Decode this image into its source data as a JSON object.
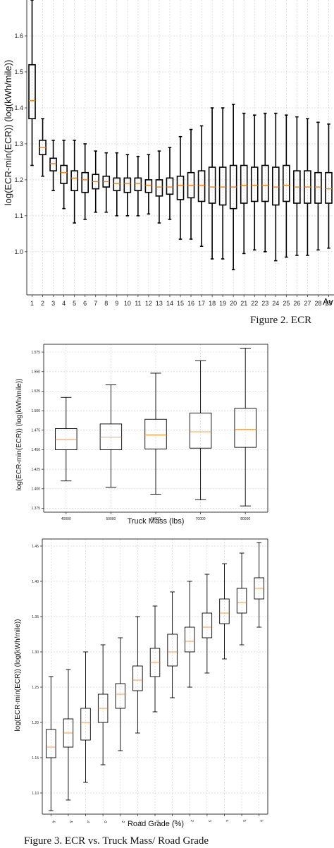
{
  "chart_data": [
    {
      "type": "box",
      "ylabel": "log(ECR-min(ECR)) (log(kWh/mile))",
      "xlabel": "Av",
      "ylim": [
        0.88,
        1.7
      ],
      "yticks": [
        1.0,
        1.1,
        1.2,
        1.3,
        1.4,
        1.5,
        1.6
      ],
      "grid": true,
      "categories": [
        "1",
        "2",
        "3",
        "4",
        "5",
        "6",
        "7",
        "8",
        "9",
        "10",
        "11",
        "12",
        "13",
        "14",
        "15",
        "16",
        "17",
        "18",
        "19",
        "20",
        "21",
        "22",
        "23",
        "24",
        "25",
        "26",
        "27",
        "28",
        "29"
      ],
      "boxes": [
        {
          "wlo": 1.24,
          "q1": 1.37,
          "med": 1.42,
          "q3": 1.52,
          "whi": 1.7
        },
        {
          "wlo": 1.21,
          "q1": 1.27,
          "med": 1.29,
          "q3": 1.31,
          "whi": 1.37
        },
        {
          "wlo": 1.17,
          "q1": 1.225,
          "med": 1.245,
          "q3": 1.26,
          "whi": 1.31
        },
        {
          "wlo": 1.12,
          "q1": 1.19,
          "med": 1.22,
          "q3": 1.24,
          "whi": 1.31
        },
        {
          "wlo": 1.08,
          "q1": 1.17,
          "med": 1.205,
          "q3": 1.225,
          "whi": 1.31
        },
        {
          "wlo": 1.09,
          "q1": 1.165,
          "med": 1.2,
          "q3": 1.22,
          "whi": 1.3
        },
        {
          "wlo": 1.11,
          "q1": 1.175,
          "med": 1.195,
          "q3": 1.215,
          "whi": 1.28
        },
        {
          "wlo": 1.11,
          "q1": 1.18,
          "med": 1.195,
          "q3": 1.21,
          "whi": 1.275
        },
        {
          "wlo": 1.1,
          "q1": 1.17,
          "med": 1.19,
          "q3": 1.205,
          "whi": 1.275
        },
        {
          "wlo": 1.1,
          "q1": 1.165,
          "med": 1.19,
          "q3": 1.205,
          "whi": 1.27
        },
        {
          "wlo": 1.1,
          "q1": 1.17,
          "med": 1.19,
          "q3": 1.205,
          "whi": 1.265
        },
        {
          "wlo": 1.105,
          "q1": 1.165,
          "med": 1.185,
          "q3": 1.2,
          "whi": 1.27
        },
        {
          "wlo": 1.08,
          "q1": 1.155,
          "med": 1.18,
          "q3": 1.2,
          "whi": 1.28
        },
        {
          "wlo": 1.09,
          "q1": 1.16,
          "med": 1.18,
          "q3": 1.205,
          "whi": 1.29
        },
        {
          "wlo": 1.035,
          "q1": 1.145,
          "med": 1.185,
          "q3": 1.21,
          "whi": 1.32
        },
        {
          "wlo": 1.035,
          "q1": 1.15,
          "med": 1.185,
          "q3": 1.22,
          "whi": 1.34
        },
        {
          "wlo": 1.015,
          "q1": 1.14,
          "med": 1.185,
          "q3": 1.225,
          "whi": 1.35
        },
        {
          "wlo": 0.98,
          "q1": 1.135,
          "med": 1.18,
          "q3": 1.235,
          "whi": 1.4
        },
        {
          "wlo": 0.98,
          "q1": 1.13,
          "med": 1.18,
          "q3": 1.235,
          "whi": 1.4
        },
        {
          "wlo": 0.95,
          "q1": 1.12,
          "med": 1.18,
          "q3": 1.24,
          "whi": 1.41
        },
        {
          "wlo": 0.995,
          "q1": 1.135,
          "med": 1.185,
          "q3": 1.24,
          "whi": 1.385
        },
        {
          "wlo": 1.005,
          "q1": 1.14,
          "med": 1.185,
          "q3": 1.235,
          "whi": 1.38
        },
        {
          "wlo": 1.0,
          "q1": 1.14,
          "med": 1.185,
          "q3": 1.24,
          "whi": 1.385
        },
        {
          "wlo": 0.975,
          "q1": 1.13,
          "med": 1.18,
          "q3": 1.235,
          "whi": 1.385
        },
        {
          "wlo": 0.985,
          "q1": 1.14,
          "med": 1.185,
          "q3": 1.24,
          "whi": 1.38
        },
        {
          "wlo": 0.99,
          "q1": 1.135,
          "med": 1.18,
          "q3": 1.225,
          "whi": 1.375
        },
        {
          "wlo": 0.99,
          "q1": 1.135,
          "med": 1.18,
          "q3": 1.225,
          "whi": 1.37
        },
        {
          "wlo": 1.005,
          "q1": 1.135,
          "med": 1.18,
          "q3": 1.22,
          "whi": 1.36
        },
        {
          "wlo": 1.01,
          "q1": 1.135,
          "med": 1.175,
          "q3": 1.22,
          "whi": 1.355
        }
      ]
    },
    {
      "type": "box",
      "xlabel": "Truck Mass (lbs)",
      "ylabel": "log(ECR-min(ECR)) (log(kWh/mile))",
      "ylim": [
        1.37,
        1.585
      ],
      "yticks": [
        1.375,
        1.4,
        1.425,
        1.45,
        1.475,
        1.5,
        1.525,
        1.55,
        1.575
      ],
      "ytick_labels": [
        "1.375",
        "1.400",
        "1.425",
        "1.450",
        "1.475",
        "1.500",
        "1.525",
        "1.550",
        "1.575"
      ],
      "grid": true,
      "categories": [
        "40000",
        "50000",
        "60000",
        "70000",
        "80000"
      ],
      "boxes": [
        {
          "wlo": 1.41,
          "q1": 1.45,
          "med": 1.463,
          "q3": 1.477,
          "whi": 1.517
        },
        {
          "wlo": 1.402,
          "q1": 1.45,
          "med": 1.466,
          "q3": 1.483,
          "whi": 1.533
        },
        {
          "wlo": 1.393,
          "q1": 1.451,
          "med": 1.469,
          "q3": 1.489,
          "whi": 1.548
        },
        {
          "wlo": 1.386,
          "q1": 1.452,
          "med": 1.473,
          "q3": 1.497,
          "whi": 1.564
        },
        {
          "wlo": 1.378,
          "q1": 1.453,
          "med": 1.476,
          "q3": 1.503,
          "whi": 1.58
        }
      ]
    },
    {
      "type": "box",
      "xlabel": "Road Grade (%)",
      "ylabel": "log(ECR-min(ECR)) (log(kWh/mile))",
      "ylim": [
        1.07,
        1.46
      ],
      "yticks": [
        1.1,
        1.15,
        1.2,
        1.25,
        1.3,
        1.35,
        1.4,
        1.45
      ],
      "ytick_labels": [
        "1.10",
        "1.15",
        "1.20",
        "1.25",
        "1.30",
        "1.35",
        "1.40",
        "1.45"
      ],
      "grid": true,
      "categories": [
        "-6",
        "-5",
        "-4",
        "-3",
        "-2",
        "-1",
        "0",
        "1",
        "2",
        "3",
        "4",
        "5",
        "6"
      ],
      "boxes": [
        {
          "wlo": 1.075,
          "q1": 1.15,
          "med": 1.165,
          "q3": 1.19,
          "whi": 1.265
        },
        {
          "wlo": 1.09,
          "q1": 1.165,
          "med": 1.185,
          "q3": 1.205,
          "whi": 1.275
        },
        {
          "wlo": 1.115,
          "q1": 1.175,
          "med": 1.2,
          "q3": 1.22,
          "whi": 1.3
        },
        {
          "wlo": 1.14,
          "q1": 1.2,
          "med": 1.22,
          "q3": 1.24,
          "whi": 1.31
        },
        {
          "wlo": 1.16,
          "q1": 1.22,
          "med": 1.24,
          "q3": 1.255,
          "whi": 1.32
        },
        {
          "wlo": 1.185,
          "q1": 1.245,
          "med": 1.26,
          "q3": 1.28,
          "whi": 1.35
        },
        {
          "wlo": 1.215,
          "q1": 1.265,
          "med": 1.285,
          "q3": 1.305,
          "whi": 1.365
        },
        {
          "wlo": 1.235,
          "q1": 1.28,
          "med": 1.3,
          "q3": 1.325,
          "whi": 1.385
        },
        {
          "wlo": 1.25,
          "q1": 1.3,
          "med": 1.315,
          "q3": 1.335,
          "whi": 1.4
        },
        {
          "wlo": 1.27,
          "q1": 1.32,
          "med": 1.335,
          "q3": 1.355,
          "whi": 1.41
        },
        {
          "wlo": 1.29,
          "q1": 1.34,
          "med": 1.355,
          "q3": 1.375,
          "whi": 1.425
        },
        {
          "wlo": 1.31,
          "q1": 1.355,
          "med": 1.37,
          "q3": 1.39,
          "whi": 1.44
        },
        {
          "wlo": 1.335,
          "q1": 1.375,
          "med": 1.39,
          "q3": 1.405,
          "whi": 1.455
        }
      ]
    }
  ],
  "colors": {
    "median": "#ff7f0e",
    "box": "#000000",
    "grid": "#d6d6d6",
    "frame": "#333333"
  },
  "captions": {
    "figure2": "Figure 2.    ECR",
    "figure3": "Figure 3.    ECR vs. Truck Mass/ Road Grade"
  }
}
